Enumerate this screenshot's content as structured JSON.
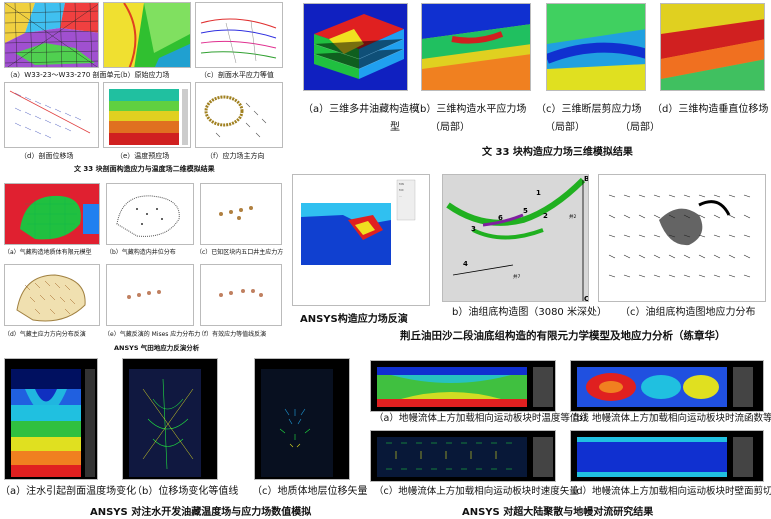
{
  "sec1": {
    "caps": [
      "（a）W33-23～W33-270 剖面单元",
      "（b）原始应力场",
      "（c）剖面水平应力等值",
      "（d）剖面位移场",
      "（e）温度预应场",
      "（f）应力场主方向"
    ],
    "title": "文 33 块剖面构造应力与温度场二维模拟结果"
  },
  "sec2": {
    "caps": [
      {
        "a": "（a）三维多井油藏构造模",
        "b": "型"
      },
      {
        "a": "（b）三维构造水平应力场",
        "b": "（局部）"
      },
      {
        "a": "（c）三维断层剪应力场",
        "b": "（局部）"
      },
      {
        "a": "（d）三维构造垂直位移场",
        "b": "（局部）"
      }
    ],
    "title": "文 33 块构造应力场三维模拟结果"
  },
  "sec3": {
    "caps": [
      {
        "a": "（a）气藏构造地质体有限元模型",
        "b": ""
      },
      {
        "a": "（b）气藏构造内井位分布",
        "b": ""
      },
      {
        "a": "（c）已知区块内五口井主应力方",
        "b": ""
      },
      {
        "a": "（d）气藏主应力方向分布反演",
        "b": ""
      },
      {
        "a": "（e）气藏反演的 Mises 应力分布力",
        "b": ""
      },
      {
        "a": "（f）有效应力等值线反演",
        "b": ""
      }
    ],
    "title": "ANSYS 气田地应力反演分析"
  },
  "sec4": {
    "title": "ANSYS构造应力场反演",
    "cap_b": "b）油组底构造图（3080 米深处）",
    "cap_c": "（c）油组底构造图地应力分布",
    "title2": "荆丘油田沙二段油底组构造的有限元力学模型及地应力分析（练章华）",
    "labels": [
      "1",
      "2",
      "3",
      "4",
      "5",
      "6",
      "B",
      "C",
      "井2",
      "井7"
    ]
  },
  "sec5": {
    "caps": [
      "（a）注水引起剖面温度场变化",
      "（b）位移场变化等值线",
      "（c）地质体地层位移矢量"
    ],
    "title": "ANSYS 对注水开发油藏温度场与应力场数值模拟"
  },
  "sec6": {
    "caps": [
      "（a）地幔流体上方加载相向运动板块时温度等值线",
      "（b）地幔流体上方加载相向运动板块时流函数等值线",
      "（c）地幔流体上方加载相向运动板块时速度矢量",
      "（d）地幔流体上方加载相向运动板块时壁面剪切应力"
    ],
    "title": "ANSYS 对超大陆聚散与地幔对流研究结果"
  },
  "colors": {
    "red": "#e02020",
    "yellow": "#f0e020",
    "green": "#20c040",
    "cyan": "#20c0e0",
    "blue": "#1030d0",
    "navy": "#001060"
  }
}
